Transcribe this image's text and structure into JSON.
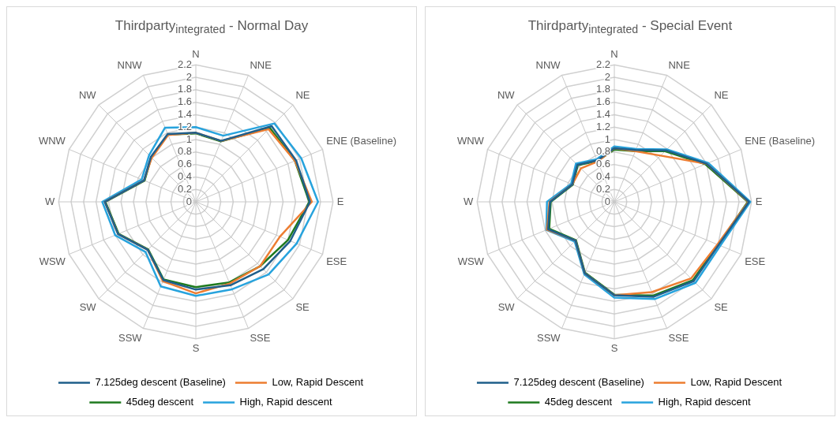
{
  "chart_data": [
    {
      "type": "radar",
      "title": "Thirdparty$_{integrated}$ - Normal Day",
      "categories": [
        "N",
        "NNE",
        "NE",
        "ENE (Baseline)",
        "E",
        "ESE",
        "SE",
        "SSE",
        "S",
        "SSW",
        "SW",
        "WSW",
        "W",
        "WNW",
        "NW",
        "NNW"
      ],
      "ylim": [
        0,
        2.2
      ],
      "yticks": [
        0,
        0.2,
        0.4,
        0.6,
        0.8,
        1,
        1.2,
        1.4,
        1.6,
        1.8,
        2,
        2.2
      ],
      "grid": true,
      "legend": "bottom",
      "marker": "none",
      "series": [
        {
          "name": "7.125deg descent (Baseline)",
          "color": "#1f5f8b",
          "values": [
            1.11,
            1.06,
            1.72,
            1.74,
            1.83,
            1.64,
            1.53,
            1.45,
            1.41,
            1.36,
            1.09,
            1.35,
            1.46,
            0.9,
            1.02,
            1.18
          ]
        },
        {
          "name": "Low, Rapid Descent",
          "color": "#ed7d31",
          "values": [
            1.11,
            1.06,
            1.65,
            1.72,
            1.86,
            1.46,
            1.46,
            1.42,
            1.47,
            1.38,
            1.09,
            1.35,
            1.46,
            0.9,
            1.0,
            1.16
          ]
        },
        {
          "name": "45deg descent",
          "color": "#1e7a1e",
          "values": [
            1.1,
            1.05,
            1.68,
            1.72,
            1.82,
            1.6,
            1.46,
            1.4,
            1.37,
            1.35,
            1.08,
            1.34,
            1.45,
            0.89,
            1.01,
            1.17
          ]
        },
        {
          "name": "High, Rapid descent",
          "color": "#27a3dd",
          "values": [
            1.2,
            1.15,
            1.78,
            1.83,
            1.96,
            1.75,
            1.65,
            1.52,
            1.51,
            1.47,
            1.14,
            1.4,
            1.5,
            0.94,
            1.06,
            1.29
          ]
        }
      ]
    },
    {
      "type": "radar",
      "title": "Thirdparty$_{integrated}$ - Special Event",
      "categories": [
        "N",
        "NNE",
        "NE",
        "ENE (Baseline)",
        "E",
        "ESE",
        "SE",
        "SSE",
        "S",
        "SSW",
        "SW",
        "WSW",
        "W",
        "WNW",
        "NW",
        "NNW"
      ],
      "ylim": [
        0,
        2.2
      ],
      "yticks": [
        0,
        0.2,
        0.4,
        0.6,
        0.8,
        1,
        1.2,
        1.4,
        1.6,
        1.8,
        2,
        2.2
      ],
      "grid": true,
      "legend": "bottom",
      "marker": "none",
      "series": [
        {
          "name": "7.125deg descent (Baseline)",
          "color": "#1f5f8b",
          "values": [
            0.86,
            0.9,
            1.17,
            1.6,
            2.16,
            1.81,
            1.8,
            1.65,
            1.5,
            1.24,
            0.88,
            1.15,
            1.03,
            0.73,
            0.84,
            0.72
          ]
        },
        {
          "name": "Low, Rapid Descent",
          "color": "#ed7d31",
          "values": [
            0.86,
            0.88,
            1.05,
            1.6,
            2.15,
            1.79,
            1.74,
            1.57,
            1.5,
            1.24,
            0.88,
            1.17,
            1.04,
            0.73,
            0.76,
            0.7
          ]
        },
        {
          "name": "45deg descent",
          "color": "#1e7a1e",
          "values": [
            0.84,
            0.88,
            1.15,
            1.58,
            2.14,
            1.8,
            1.78,
            1.63,
            1.49,
            1.23,
            0.87,
            1.13,
            1.02,
            0.72,
            0.83,
            0.71
          ]
        },
        {
          "name": "High, Rapid descent",
          "color": "#27a3dd",
          "values": [
            0.89,
            0.92,
            1.19,
            1.63,
            2.18,
            1.84,
            1.84,
            1.69,
            1.54,
            1.26,
            0.9,
            1.18,
            1.08,
            0.75,
            0.87,
            0.74
          ]
        }
      ]
    }
  ]
}
